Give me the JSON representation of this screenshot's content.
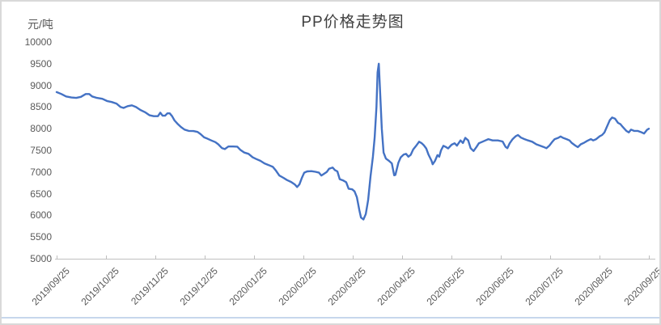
{
  "title": "PP价格走势图",
  "y_unit_label": "元/吨",
  "colors": {
    "line": "#4472C4",
    "axis": "#BFBFBF",
    "tick_text": "#595959",
    "title_text": "#404040",
    "outer_border": "#D9D9D9",
    "bottom_accent": "#C7D7EC"
  },
  "chart_data": {
    "type": "line",
    "title": "PP价格走势图",
    "xlabel": "",
    "ylabel": "元/吨",
    "ylim": [
      5000,
      10000
    ],
    "y_ticks": [
      5000,
      5500,
      6000,
      6500,
      7000,
      7500,
      8000,
      8500,
      9000,
      9500,
      10000
    ],
    "x_tick_labels": [
      "2019/09/25",
      "2019/10/25",
      "2019/11/25",
      "2019/12/25",
      "2020/01/25",
      "2020/02/25",
      "2020/03/25",
      "2020/04/25",
      "2020/05/25",
      "2020/06/25",
      "2020/07/25",
      "2020/08/25",
      "2020/09/25"
    ],
    "grid": false,
    "legend_position": "none",
    "series": [
      {
        "points": [
          [
            0.0,
            8845
          ],
          [
            0.008,
            8800
          ],
          [
            0.016,
            8745
          ],
          [
            0.025,
            8720
          ],
          [
            0.033,
            8710
          ],
          [
            0.041,
            8735
          ],
          [
            0.049,
            8800
          ],
          [
            0.055,
            8800
          ],
          [
            0.06,
            8745
          ],
          [
            0.068,
            8710
          ],
          [
            0.077,
            8690
          ],
          [
            0.085,
            8640
          ],
          [
            0.093,
            8615
          ],
          [
            0.101,
            8580
          ],
          [
            0.108,
            8500
          ],
          [
            0.113,
            8480
          ],
          [
            0.12,
            8520
          ],
          [
            0.127,
            8540
          ],
          [
            0.134,
            8500
          ],
          [
            0.142,
            8430
          ],
          [
            0.15,
            8375
          ],
          [
            0.157,
            8310
          ],
          [
            0.164,
            8290
          ],
          [
            0.171,
            8290
          ],
          [
            0.175,
            8370
          ],
          [
            0.179,
            8300
          ],
          [
            0.183,
            8300
          ],
          [
            0.187,
            8355
          ],
          [
            0.191,
            8355
          ],
          [
            0.195,
            8290
          ],
          [
            0.199,
            8190
          ],
          [
            0.205,
            8100
          ],
          [
            0.21,
            8040
          ],
          [
            0.216,
            7980
          ],
          [
            0.223,
            7950
          ],
          [
            0.231,
            7945
          ],
          [
            0.238,
            7925
          ],
          [
            0.243,
            7875
          ],
          [
            0.249,
            7800
          ],
          [
            0.254,
            7775
          ],
          [
            0.261,
            7730
          ],
          [
            0.268,
            7690
          ],
          [
            0.273,
            7640
          ],
          [
            0.279,
            7555
          ],
          [
            0.284,
            7530
          ],
          [
            0.29,
            7590
          ],
          [
            0.298,
            7590
          ],
          [
            0.305,
            7585
          ],
          [
            0.31,
            7515
          ],
          [
            0.317,
            7450
          ],
          [
            0.324,
            7420
          ],
          [
            0.331,
            7340
          ],
          [
            0.337,
            7300
          ],
          [
            0.344,
            7260
          ],
          [
            0.351,
            7200
          ],
          [
            0.358,
            7160
          ],
          [
            0.365,
            7120
          ],
          [
            0.37,
            7040
          ],
          [
            0.376,
            6920
          ],
          [
            0.383,
            6865
          ],
          [
            0.389,
            6815
          ],
          [
            0.396,
            6770
          ],
          [
            0.402,
            6715
          ],
          [
            0.406,
            6655
          ],
          [
            0.41,
            6715
          ],
          [
            0.414,
            6860
          ],
          [
            0.418,
            6985
          ],
          [
            0.423,
            7015
          ],
          [
            0.43,
            7020
          ],
          [
            0.437,
            7005
          ],
          [
            0.443,
            6985
          ],
          [
            0.447,
            6920
          ],
          [
            0.451,
            6955
          ],
          [
            0.456,
            7000
          ],
          [
            0.46,
            7075
          ],
          [
            0.466,
            7105
          ],
          [
            0.47,
            7045
          ],
          [
            0.474,
            7015
          ],
          [
            0.478,
            6835
          ],
          [
            0.484,
            6805
          ],
          [
            0.489,
            6765
          ],
          [
            0.493,
            6615
          ],
          [
            0.499,
            6600
          ],
          [
            0.503,
            6555
          ],
          [
            0.507,
            6420
          ],
          [
            0.511,
            6125
          ],
          [
            0.514,
            5950
          ],
          [
            0.518,
            5905
          ],
          [
            0.522,
            6030
          ],
          [
            0.526,
            6350
          ],
          [
            0.53,
            6905
          ],
          [
            0.534,
            7350
          ],
          [
            0.537,
            7800
          ],
          [
            0.54,
            8500
          ],
          [
            0.542,
            9300
          ],
          [
            0.544,
            9500
          ],
          [
            0.546,
            8900
          ],
          [
            0.549,
            8000
          ],
          [
            0.552,
            7450
          ],
          [
            0.556,
            7310
          ],
          [
            0.561,
            7260
          ],
          [
            0.566,
            7200
          ],
          [
            0.57,
            6925
          ],
          [
            0.572,
            6935
          ],
          [
            0.577,
            7215
          ],
          [
            0.581,
            7340
          ],
          [
            0.586,
            7405
          ],
          [
            0.59,
            7420
          ],
          [
            0.594,
            7355
          ],
          [
            0.598,
            7400
          ],
          [
            0.602,
            7520
          ],
          [
            0.607,
            7605
          ],
          [
            0.612,
            7700
          ],
          [
            0.616,
            7670
          ],
          [
            0.62,
            7620
          ],
          [
            0.624,
            7545
          ],
          [
            0.628,
            7400
          ],
          [
            0.633,
            7260
          ],
          [
            0.635,
            7180
          ],
          [
            0.639,
            7260
          ],
          [
            0.643,
            7390
          ],
          [
            0.646,
            7355
          ],
          [
            0.649,
            7500
          ],
          [
            0.653,
            7605
          ],
          [
            0.657,
            7580
          ],
          [
            0.661,
            7545
          ],
          [
            0.667,
            7630
          ],
          [
            0.672,
            7665
          ],
          [
            0.676,
            7610
          ],
          [
            0.682,
            7730
          ],
          [
            0.686,
            7670
          ],
          [
            0.69,
            7790
          ],
          [
            0.695,
            7730
          ],
          [
            0.699,
            7550
          ],
          [
            0.704,
            7485
          ],
          [
            0.709,
            7580
          ],
          [
            0.713,
            7665
          ],
          [
            0.719,
            7700
          ],
          [
            0.724,
            7730
          ],
          [
            0.729,
            7760
          ],
          [
            0.736,
            7730
          ],
          [
            0.745,
            7730
          ],
          [
            0.753,
            7705
          ],
          [
            0.758,
            7580
          ],
          [
            0.761,
            7550
          ],
          [
            0.765,
            7665
          ],
          [
            0.77,
            7760
          ],
          [
            0.775,
            7825
          ],
          [
            0.779,
            7855
          ],
          [
            0.784,
            7795
          ],
          [
            0.79,
            7760
          ],
          [
            0.796,
            7730
          ],
          [
            0.803,
            7700
          ],
          [
            0.81,
            7640
          ],
          [
            0.817,
            7605
          ],
          [
            0.822,
            7580
          ],
          [
            0.827,
            7550
          ],
          [
            0.832,
            7610
          ],
          [
            0.837,
            7700
          ],
          [
            0.841,
            7760
          ],
          [
            0.847,
            7790
          ],
          [
            0.851,
            7820
          ],
          [
            0.855,
            7790
          ],
          [
            0.861,
            7760
          ],
          [
            0.866,
            7730
          ],
          [
            0.87,
            7670
          ],
          [
            0.876,
            7610
          ],
          [
            0.88,
            7575
          ],
          [
            0.885,
            7640
          ],
          [
            0.891,
            7680
          ],
          [
            0.896,
            7720
          ],
          [
            0.902,
            7760
          ],
          [
            0.906,
            7730
          ],
          [
            0.911,
            7760
          ],
          [
            0.917,
            7825
          ],
          [
            0.921,
            7855
          ],
          [
            0.925,
            7915
          ],
          [
            0.929,
            8040
          ],
          [
            0.934,
            8195
          ],
          [
            0.938,
            8260
          ],
          [
            0.943,
            8230
          ],
          [
            0.948,
            8135
          ],
          [
            0.952,
            8105
          ],
          [
            0.956,
            8040
          ],
          [
            0.962,
            7950
          ],
          [
            0.966,
            7915
          ],
          [
            0.97,
            7980
          ],
          [
            0.975,
            7950
          ],
          [
            0.981,
            7950
          ],
          [
            0.986,
            7925
          ],
          [
            0.992,
            7890
          ],
          [
            0.997,
            7975
          ],
          [
            1.0,
            8000
          ]
        ]
      }
    ]
  }
}
